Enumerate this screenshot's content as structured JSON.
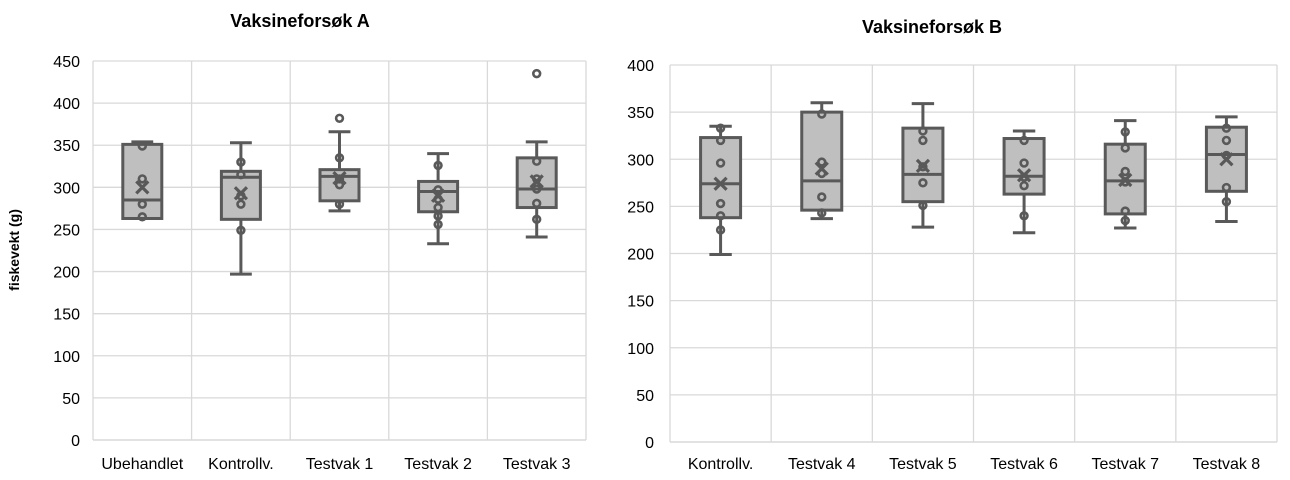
{
  "colors": {
    "box_fill": "#bfbfbf",
    "stroke": "#595959",
    "grid": "#d9d9d9",
    "text": "#000000"
  },
  "chart_data": [
    {
      "type": "box",
      "title": "Vaksineforsøk A",
      "ylabel": "fiskevekt (g)",
      "ylim": [
        0,
        450
      ],
      "yticks": [
        0,
        50,
        100,
        150,
        200,
        250,
        300,
        350,
        400,
        450
      ],
      "grid": true,
      "categories": [
        "Ubehandlet",
        "Kontrollv.",
        "Testvak 1",
        "Testvak 2",
        "Testvak 3"
      ],
      "boxes": [
        {
          "min": 263,
          "q1": 263,
          "median": 285,
          "q3": 351,
          "max": 354,
          "mean": 300,
          "points": [
            349,
            310,
            280,
            265
          ]
        },
        {
          "min": 197,
          "q1": 262,
          "median": 312,
          "q3": 319,
          "max": 353,
          "mean": 293,
          "points": [
            330,
            315,
            290,
            280,
            249
          ]
        },
        {
          "min": 272,
          "q1": 284,
          "median": 313,
          "q3": 321,
          "max": 366,
          "mean": 311,
          "points": [
            382,
            335,
            310,
            303,
            280
          ]
        },
        {
          "min": 233,
          "q1": 271,
          "median": 295,
          "q3": 307,
          "max": 340,
          "mean": 290,
          "points": [
            326,
            297,
            286,
            276,
            266,
            256
          ]
        },
        {
          "min": 241,
          "q1": 276,
          "median": 298,
          "q3": 335,
          "max": 354,
          "mean": 307,
          "points": [
            435,
            331,
            310,
            298,
            281,
            262
          ]
        }
      ]
    },
    {
      "type": "box",
      "title": "Vaksineforsøk B",
      "ylabel": "",
      "ylim": [
        0,
        400
      ],
      "yticks": [
        0,
        50,
        100,
        150,
        200,
        250,
        300,
        350,
        400
      ],
      "grid": true,
      "categories": [
        "Kontrollv.",
        "Testvak 4",
        "Testvak 5",
        "Testvak 6",
        "Testvak 7",
        "Testvak 8"
      ],
      "boxes": [
        {
          "min": 199,
          "q1": 238,
          "median": 274,
          "q3": 323,
          "max": 335,
          "mean": 274,
          "points": [
            333,
            320,
            296,
            253,
            240,
            225
          ]
        },
        {
          "min": 237,
          "q1": 246,
          "median": 277,
          "q3": 350,
          "max": 360,
          "mean": 290,
          "points": [
            348,
            297,
            285,
            260,
            243
          ]
        },
        {
          "min": 228,
          "q1": 255,
          "median": 284,
          "q3": 333,
          "max": 359,
          "mean": 293,
          "points": [
            330,
            320,
            292,
            275,
            251
          ]
        },
        {
          "min": 222,
          "q1": 263,
          "median": 282,
          "q3": 322,
          "max": 330,
          "mean": 283,
          "points": [
            320,
            296,
            281,
            272,
            240
          ]
        },
        {
          "min": 227,
          "q1": 242,
          "median": 277,
          "q3": 316,
          "max": 341,
          "mean": 278,
          "points": [
            329,
            312,
            287,
            276,
            245,
            235
          ]
        },
        {
          "min": 234,
          "q1": 266,
          "median": 305,
          "q3": 334,
          "max": 345,
          "mean": 300,
          "points": [
            333,
            320,
            304,
            270,
            255
          ]
        }
      ]
    }
  ]
}
